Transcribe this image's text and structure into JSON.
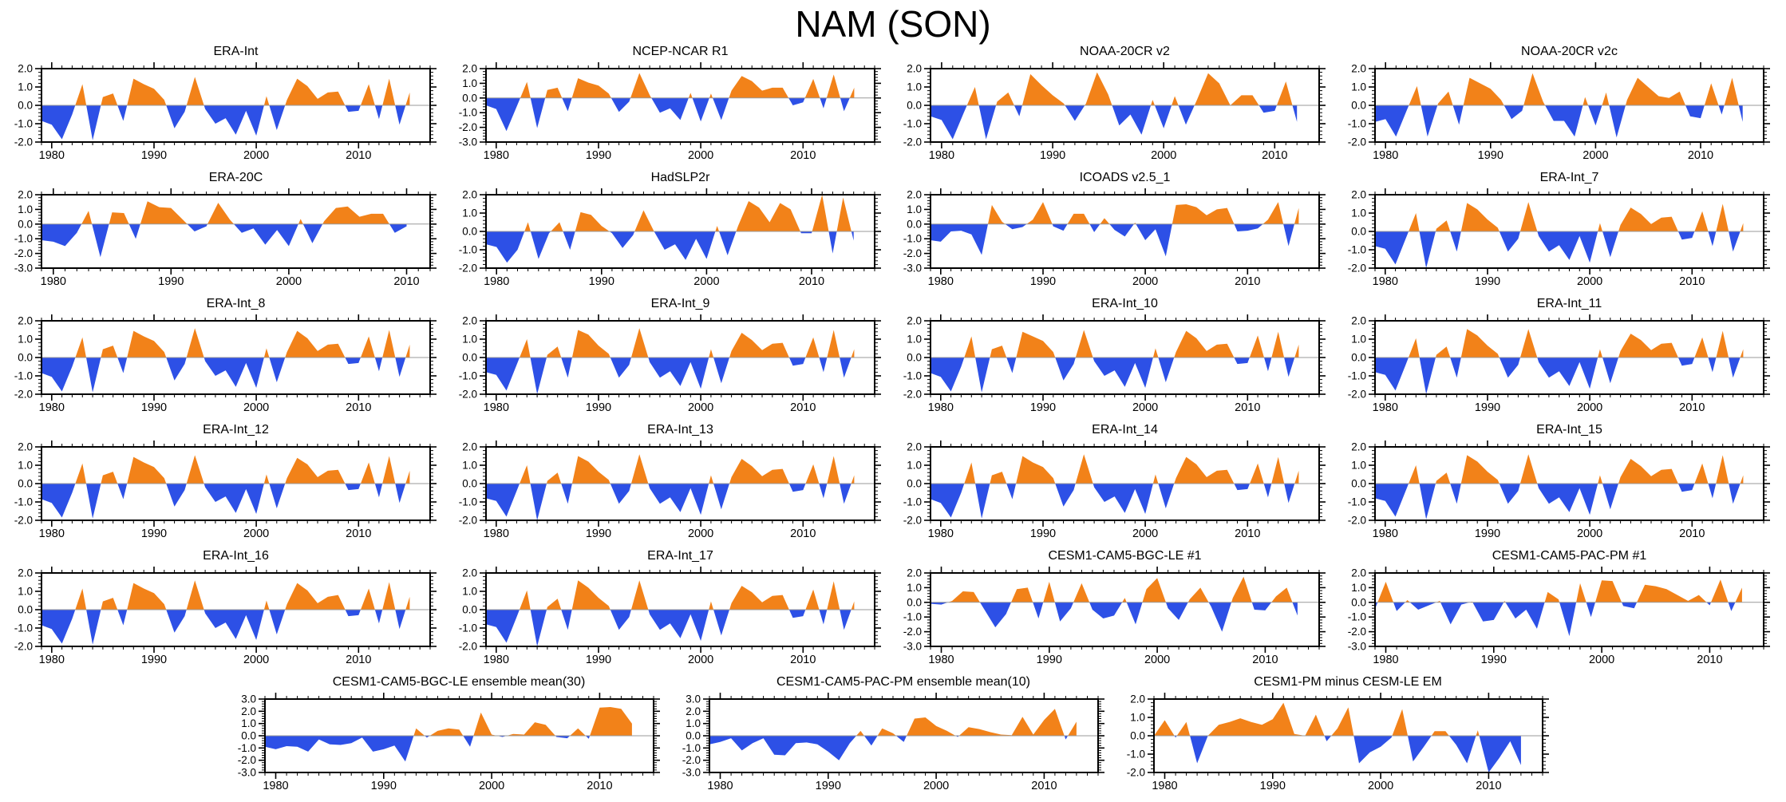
{
  "page_title": "NAM (SON)",
  "colors": {
    "positive": "#F28219",
    "negative": "#2D50E6",
    "axis": "#000000",
    "zero_line": "#999999"
  },
  "layout": {
    "rows": [
      {
        "panels": [
          0,
          1,
          2,
          3
        ],
        "centered": false
      },
      {
        "panels": [
          4,
          5,
          6,
          7
        ],
        "centered": false
      },
      {
        "panels": [
          8,
          9,
          10,
          11
        ],
        "centered": false
      },
      {
        "panels": [
          12,
          13,
          14,
          15
        ],
        "centered": false
      },
      {
        "panels": [
          16,
          17,
          18,
          19
        ],
        "centered": false
      },
      {
        "panels": [
          20,
          21,
          22
        ],
        "centered": true
      }
    ]
  },
  "chart_data": [
    {
      "type": "area",
      "title": "ERA-Int",
      "x_start": 1979,
      "x_axis_end": 2017,
      "xtick_labels": [
        1980,
        1990,
        2000,
        2010
      ],
      "ylim": [
        -2,
        2
      ],
      "ytick_step": 1,
      "values": [
        -0.85,
        -1.05,
        -1.85,
        -0.5,
        1.15,
        -1.9,
        0.45,
        0.65,
        -0.85,
        1.45,
        1.15,
        0.9,
        0.3,
        -1.25,
        -0.35,
        1.55,
        -0.2,
        -1.0,
        -0.7,
        -1.6,
        -0.3,
        -1.65,
        0.5,
        -1.35,
        0.3,
        1.45,
        1.05,
        0.35,
        0.7,
        0.75,
        -0.35,
        -0.3,
        1.15,
        -0.75,
        1.45,
        -1.05,
        0.7
      ]
    },
    {
      "type": "area",
      "title": "NCEP-NCAR R1",
      "x_start": 1979,
      "x_axis_end": 2017,
      "xtick_labels": [
        1980,
        1990,
        2000,
        2010
      ],
      "ylim": [
        -3,
        2
      ],
      "ytick_step": 1,
      "values": [
        -0.5,
        -0.75,
        -2.25,
        -0.6,
        1.1,
        -2.05,
        0.55,
        0.7,
        -0.9,
        1.35,
        1.05,
        0.85,
        0.3,
        -0.95,
        -0.25,
        1.7,
        0.2,
        -1.0,
        -0.7,
        -1.5,
        0.35,
        -1.6,
        0.3,
        -1.5,
        0.5,
        1.5,
        1.15,
        0.5,
        0.7,
        0.7,
        -0.5,
        -0.3,
        1.3,
        -0.7,
        1.6,
        -0.9,
        0.7
      ]
    },
    {
      "type": "area",
      "title": "NOAA-20CR v2",
      "x_start": 1979,
      "x_axis_end": 2014,
      "xtick_labels": [
        1980,
        1990,
        2000,
        2010
      ],
      "ylim": [
        -2,
        2
      ],
      "ytick_step": 1,
      "values": [
        -0.6,
        -0.8,
        -1.85,
        -0.4,
        1.0,
        -1.85,
        0.2,
        0.7,
        -0.6,
        1.7,
        1.1,
        0.55,
        0.1,
        -0.85,
        0.1,
        1.8,
        0.6,
        -1.1,
        -0.5,
        -1.6,
        0.3,
        -1.25,
        0.5,
        -1.05,
        0.3,
        1.75,
        1.2,
        0.0,
        0.55,
        0.55,
        -0.4,
        -0.3,
        1.3,
        -0.9
      ]
    },
    {
      "type": "area",
      "title": "NOAA-20CR v2c",
      "x_start": 1979,
      "x_axis_end": 2016,
      "xtick_labels": [
        1980,
        1990,
        2000,
        2010
      ],
      "ylim": [
        -2,
        2
      ],
      "ytick_step": 1,
      "values": [
        -0.9,
        -0.75,
        -1.7,
        -0.3,
        1.05,
        -1.7,
        0.1,
        0.75,
        -1.05,
        1.5,
        1.2,
        0.9,
        0.3,
        -0.75,
        -0.3,
        1.75,
        0.2,
        -0.85,
        -0.85,
        -1.7,
        0.45,
        -1.1,
        0.7,
        -1.75,
        0.3,
        1.5,
        1.0,
        0.5,
        0.4,
        0.75,
        -0.6,
        -0.7,
        1.2,
        -0.5,
        1.5,
        -0.9
      ]
    },
    {
      "type": "area",
      "title": "ERA-20C",
      "x_start": 1979,
      "x_axis_end": 2012,
      "xtick_labels": [
        1980,
        1990,
        2000,
        2010
      ],
      "ylim": [
        -3,
        2
      ],
      "ytick_step": 1,
      "values": [
        -1.1,
        -1.2,
        -1.5,
        -0.6,
        0.9,
        -2.25,
        0.8,
        0.75,
        -1.0,
        1.55,
        1.15,
        1.1,
        0.3,
        -0.5,
        -0.15,
        1.45,
        0.3,
        -0.6,
        -0.3,
        -1.4,
        -0.4,
        -1.5,
        0.35,
        -1.3,
        0.2,
        1.1,
        1.2,
        0.5,
        0.7,
        0.7,
        -0.6,
        -0.15
      ]
    },
    {
      "type": "area",
      "title": "HadSLP2r",
      "x_start": 1979,
      "x_axis_end": 2016,
      "xtick_labels": [
        1980,
        1990,
        2000,
        2010
      ],
      "ylim": [
        -2,
        2
      ],
      "ytick_step": 1,
      "values": [
        -0.7,
        -0.85,
        -1.7,
        -1.0,
        0.5,
        -1.5,
        -0.1,
        0.5,
        -1.0,
        1.05,
        0.9,
        0.3,
        -0.1,
        -0.9,
        -0.2,
        1.15,
        0.0,
        -1.0,
        -0.7,
        -1.55,
        -0.4,
        -1.5,
        0.3,
        -1.3,
        0.3,
        1.65,
        1.3,
        0.5,
        1.55,
        1.2,
        -0.1,
        -0.1,
        2.0,
        -1.2,
        1.85,
        -0.5
      ]
    },
    {
      "type": "area",
      "title": "ICOADS v2.5_1",
      "x_start": 1979,
      "x_axis_end": 2017,
      "xtick_labels": [
        1980,
        1990,
        2000,
        2010
      ],
      "ylim": [
        -3,
        2
      ],
      "ytick_step": 1,
      "values": [
        -1.1,
        -1.2,
        -0.5,
        -0.45,
        -0.7,
        -2.1,
        1.3,
        0.15,
        -0.35,
        -0.2,
        0.3,
        1.5,
        -0.15,
        -0.45,
        0.7,
        0.7,
        -0.55,
        0.4,
        -0.4,
        -0.85,
        0.1,
        -1.1,
        -0.35,
        -2.2,
        1.3,
        1.35,
        1.15,
        0.6,
        1.0,
        1.1,
        -0.5,
        -0.45,
        -0.3,
        0.3,
        1.5,
        -1.5,
        1.1
      ]
    },
    {
      "type": "area",
      "title": "ERA-Int_7",
      "x_start": 1979,
      "x_axis_end": 2017,
      "xtick_labels": [
        1980,
        1990,
        2000,
        2010
      ],
      "ylim": [
        -2,
        2
      ],
      "ytick_step": 1,
      "values": [
        -0.8,
        -0.95,
        -1.8,
        -0.4,
        1.0,
        -2.0,
        0.15,
        0.6,
        -1.1,
        1.55,
        1.2,
        0.65,
        0.2,
        -1.1,
        -0.4,
        1.6,
        -0.25,
        -1.1,
        -0.75,
        -1.55,
        -0.25,
        -1.7,
        0.45,
        -1.4,
        0.35,
        1.3,
        0.95,
        0.4,
        0.75,
        0.8,
        -0.45,
        -0.35,
        1.1,
        -0.8,
        1.5,
        -1.1,
        0.45
      ]
    },
    {
      "type": "area",
      "title": "ERA-Int_8",
      "x_start": 1979,
      "x_axis_end": 2017,
      "xtick_labels": [
        1980,
        1990,
        2000,
        2010
      ],
      "ylim": [
        -2,
        2
      ],
      "ytick_step": 1,
      "values": [
        -0.85,
        -1.05,
        -1.85,
        -0.5,
        1.1,
        -1.9,
        0.45,
        0.65,
        -0.85,
        1.45,
        1.15,
        0.9,
        0.3,
        -1.25,
        -0.35,
        1.6,
        -0.2,
        -1.0,
        -0.7,
        -1.6,
        -0.3,
        -1.65,
        0.5,
        -1.35,
        0.3,
        1.45,
        1.05,
        0.35,
        0.7,
        0.75,
        -0.35,
        -0.3,
        1.15,
        -0.75,
        1.5,
        -1.05,
        0.7
      ]
    },
    {
      "type": "area",
      "title": "ERA-Int_9",
      "x_start": 1979,
      "x_axis_end": 2017,
      "xtick_labels": [
        1980,
        1990,
        2000,
        2010
      ],
      "ylim": [
        -2,
        2
      ],
      "ytick_step": 1,
      "values": [
        -0.8,
        -0.95,
        -1.8,
        -0.4,
        1.0,
        -2.0,
        0.15,
        0.6,
        -1.1,
        1.5,
        1.25,
        0.65,
        0.2,
        -1.1,
        -0.4,
        1.6,
        -0.25,
        -1.1,
        -0.75,
        -1.55,
        -0.25,
        -1.7,
        0.45,
        -1.4,
        0.35,
        1.35,
        0.95,
        0.4,
        0.75,
        0.8,
        -0.45,
        -0.35,
        1.1,
        -0.8,
        1.5,
        -1.1,
        0.45
      ]
    },
    {
      "type": "area",
      "title": "ERA-Int_10",
      "x_start": 1979,
      "x_axis_end": 2017,
      "xtick_labels": [
        1980,
        1990,
        2000,
        2010
      ],
      "ylim": [
        -2,
        2
      ],
      "ytick_step": 1,
      "values": [
        -0.85,
        -1.05,
        -1.85,
        -0.5,
        1.15,
        -1.9,
        0.45,
        0.65,
        -0.85,
        1.4,
        1.15,
        0.9,
        0.3,
        -1.25,
        -0.35,
        1.5,
        -0.2,
        -1.0,
        -0.7,
        -1.6,
        -0.3,
        -1.65,
        0.5,
        -1.35,
        0.3,
        1.45,
        1.05,
        0.35,
        0.7,
        0.75,
        -0.35,
        -0.3,
        1.2,
        -0.75,
        1.4,
        -1.05,
        0.7
      ]
    },
    {
      "type": "area",
      "title": "ERA-Int_11",
      "x_start": 1979,
      "x_axis_end": 2017,
      "xtick_labels": [
        1980,
        1990,
        2000,
        2010
      ],
      "ylim": [
        -2,
        2
      ],
      "ytick_step": 1,
      "values": [
        -0.8,
        -0.95,
        -1.8,
        -0.4,
        1.05,
        -2.0,
        0.15,
        0.6,
        -1.1,
        1.55,
        1.2,
        0.65,
        0.2,
        -1.1,
        -0.4,
        1.55,
        -0.25,
        -1.1,
        -0.75,
        -1.55,
        -0.25,
        -1.7,
        0.45,
        -1.4,
        0.35,
        1.3,
        0.95,
        0.4,
        0.75,
        0.8,
        -0.45,
        -0.35,
        1.1,
        -0.8,
        1.45,
        -1.1,
        0.45
      ]
    },
    {
      "type": "area",
      "title": "ERA-Int_12",
      "x_start": 1979,
      "x_axis_end": 2017,
      "xtick_labels": [
        1980,
        1990,
        2000,
        2010
      ],
      "ylim": [
        -2,
        2
      ],
      "ytick_step": 1,
      "values": [
        -0.85,
        -1.05,
        -1.85,
        -0.5,
        1.1,
        -1.9,
        0.45,
        0.65,
        -0.85,
        1.45,
        1.15,
        0.9,
        0.3,
        -1.25,
        -0.35,
        1.55,
        -0.2,
        -1.0,
        -0.7,
        -1.6,
        -0.3,
        -1.65,
        0.5,
        -1.35,
        0.3,
        1.4,
        1.05,
        0.35,
        0.7,
        0.75,
        -0.35,
        -0.3,
        1.15,
        -0.75,
        1.5,
        -1.05,
        0.7
      ]
    },
    {
      "type": "area",
      "title": "ERA-Int_13",
      "x_start": 1979,
      "x_axis_end": 2017,
      "xtick_labels": [
        1980,
        1990,
        2000,
        2010
      ],
      "ylim": [
        -2,
        2
      ],
      "ytick_step": 1,
      "values": [
        -0.8,
        -0.95,
        -1.8,
        -0.4,
        1.0,
        -2.0,
        0.15,
        0.6,
        -1.1,
        1.5,
        1.2,
        0.65,
        0.2,
        -1.1,
        -0.4,
        1.6,
        -0.25,
        -1.1,
        -0.75,
        -1.55,
        -0.25,
        -1.7,
        0.45,
        -1.4,
        0.35,
        1.35,
        0.95,
        0.4,
        0.75,
        0.8,
        -0.45,
        -0.35,
        1.05,
        -0.8,
        1.5,
        -1.1,
        0.45
      ]
    },
    {
      "type": "area",
      "title": "ERA-Int_14",
      "x_start": 1979,
      "x_axis_end": 2017,
      "xtick_labels": [
        1980,
        1990,
        2000,
        2010
      ],
      "ylim": [
        -2,
        2
      ],
      "ytick_step": 1,
      "values": [
        -0.85,
        -1.05,
        -1.85,
        -0.5,
        1.15,
        -1.9,
        0.45,
        0.65,
        -0.85,
        1.5,
        1.15,
        0.9,
        0.3,
        -1.25,
        -0.35,
        1.6,
        -0.2,
        -1.0,
        -0.7,
        -1.6,
        -0.3,
        -1.65,
        0.5,
        -1.35,
        0.3,
        1.45,
        1.05,
        0.35,
        0.7,
        0.75,
        -0.35,
        -0.3,
        1.1,
        -0.75,
        1.45,
        -1.05,
        0.7
      ]
    },
    {
      "type": "area",
      "title": "ERA-Int_15",
      "x_start": 1979,
      "x_axis_end": 2017,
      "xtick_labels": [
        1980,
        1990,
        2000,
        2010
      ],
      "ylim": [
        -2,
        2
      ],
      "ytick_step": 1,
      "values": [
        -0.8,
        -0.95,
        -1.8,
        -0.4,
        1.0,
        -1.95,
        0.15,
        0.6,
        -1.1,
        1.55,
        1.2,
        0.65,
        0.2,
        -1.1,
        -0.4,
        1.6,
        -0.25,
        -1.1,
        -0.75,
        -1.55,
        -0.25,
        -1.7,
        0.45,
        -1.4,
        0.35,
        1.35,
        0.95,
        0.4,
        0.75,
        0.8,
        -0.45,
        -0.35,
        1.1,
        -0.8,
        1.55,
        -1.1,
        0.45
      ]
    },
    {
      "type": "area",
      "title": "ERA-Int_16",
      "x_start": 1979,
      "x_axis_end": 2017,
      "xtick_labels": [
        1980,
        1990,
        2000,
        2010
      ],
      "ylim": [
        -2,
        2
      ],
      "ytick_step": 1,
      "values": [
        -0.85,
        -1.05,
        -1.85,
        -0.5,
        1.15,
        -1.9,
        0.45,
        0.65,
        -0.85,
        1.45,
        1.15,
        0.9,
        0.3,
        -1.25,
        -0.35,
        1.6,
        -0.2,
        -1.0,
        -0.7,
        -1.6,
        -0.3,
        -1.65,
        0.5,
        -1.35,
        0.3,
        1.45,
        1.05,
        0.35,
        0.7,
        0.8,
        -0.35,
        -0.3,
        1.15,
        -0.75,
        1.5,
        -1.05,
        0.7
      ]
    },
    {
      "type": "area",
      "title": "ERA-Int_17",
      "x_start": 1979,
      "x_axis_end": 2017,
      "xtick_labels": [
        1980,
        1990,
        2000,
        2010
      ],
      "ylim": [
        -2,
        2
      ],
      "ytick_step": 1,
      "values": [
        -0.8,
        -0.95,
        -1.8,
        -0.4,
        1.05,
        -2.0,
        0.15,
        0.6,
        -1.1,
        1.6,
        1.2,
        0.65,
        0.2,
        -1.1,
        -0.4,
        1.6,
        -0.25,
        -1.1,
        -0.75,
        -1.55,
        -0.25,
        -1.7,
        0.45,
        -1.4,
        0.35,
        1.3,
        0.95,
        0.4,
        0.75,
        0.8,
        -0.45,
        -0.35,
        1.1,
        -0.8,
        1.55,
        -1.1,
        0.45
      ]
    },
    {
      "type": "area",
      "title": "CESM1-CAM5-BGC-LE #1",
      "x_start": 1979,
      "x_axis_end": 2015,
      "xtick_labels": [
        1980,
        1990,
        2000,
        2010
      ],
      "ylim": [
        -3,
        2
      ],
      "ytick_step": 1,
      "values": [
        -0.1,
        -0.15,
        0.1,
        0.75,
        0.7,
        -0.5,
        -1.7,
        -0.8,
        0.9,
        1.0,
        -1.1,
        1.4,
        -1.3,
        -0.4,
        1.3,
        -0.5,
        -1.1,
        -0.9,
        0.3,
        -1.5,
        0.9,
        1.65,
        -0.4,
        -1.2,
        0.2,
        1.0,
        -0.3,
        -2.0,
        0.3,
        1.75,
        -0.5,
        -0.55,
        0.4,
        1.0,
        -0.9
      ]
    },
    {
      "type": "area",
      "title": "CESM1-CAM5-PAC-PM #1",
      "x_start": 1979,
      "x_axis_end": 2015,
      "xtick_labels": [
        1980,
        1990,
        2000,
        2010
      ],
      "ylim": [
        -3,
        2
      ],
      "ytick_step": 1,
      "values": [
        -0.45,
        1.4,
        -0.6,
        0.15,
        -0.5,
        -0.2,
        0.1,
        -1.5,
        -0.15,
        0.05,
        -1.3,
        -1.2,
        0.1,
        -1.1,
        -0.5,
        -1.8,
        0.7,
        0.2,
        -2.3,
        1.3,
        -1.0,
        1.5,
        1.45,
        -0.25,
        -0.4,
        1.2,
        1.1,
        0.9,
        0.5,
        0.1,
        0.5,
        -0.2,
        1.55,
        -0.6,
        1.0
      ]
    },
    {
      "type": "area",
      "title": "CESM1-CAM5-BGC-LE ensemble mean(30)",
      "x_start": 1979,
      "x_axis_end": 2015,
      "xtick_labels": [
        1980,
        1990,
        2000,
        2010
      ],
      "ylim": [
        -3,
        3
      ],
      "ytick_step": 1,
      "values": [
        -0.9,
        -1.1,
        -0.85,
        -0.9,
        -1.3,
        -0.3,
        -0.7,
        -0.75,
        -0.6,
        -0.15,
        -1.3,
        -1.1,
        -0.8,
        -2.1,
        0.6,
        -0.15,
        0.4,
        0.6,
        0.5,
        -0.9,
        1.9,
        0.1,
        -0.1,
        0.15,
        0.1,
        1.1,
        0.9,
        -0.1,
        -0.2,
        0.6,
        -0.25,
        2.3,
        2.35,
        2.2,
        1.0
      ]
    },
    {
      "type": "area",
      "title": "CESM1-CAM5-PAC-PM ensemble mean(10)",
      "x_start": 1979,
      "x_axis_end": 2015,
      "xtick_labels": [
        1980,
        1990,
        2000,
        2010
      ],
      "ylim": [
        -3,
        3
      ],
      "ytick_step": 1,
      "values": [
        -0.7,
        -0.5,
        -0.2,
        -1.2,
        -0.6,
        -0.2,
        -1.55,
        -1.6,
        -0.6,
        -0.55,
        -0.7,
        -1.3,
        -2.0,
        -0.6,
        0.4,
        -0.8,
        0.6,
        0.2,
        -0.5,
        1.4,
        1.5,
        0.8,
        0.4,
        -0.1,
        0.7,
        0.55,
        0.3,
        0.1,
        0.05,
        1.55,
        0.1,
        1.3,
        2.2,
        -0.3,
        1.15
      ]
    },
    {
      "type": "area",
      "title": "CESM1-PM minus CESM-LE EM",
      "x_start": 1979,
      "x_axis_end": 2015,
      "xtick_labels": [
        1980,
        1990,
        2000,
        2010
      ],
      "ylim": [
        -2,
        2
      ],
      "ytick_step": 1,
      "values": [
        0.0,
        0.85,
        -0.1,
        0.75,
        -1.5,
        0.0,
        0.6,
        0.75,
        0.95,
        0.75,
        0.6,
        0.9,
        1.8,
        0.1,
        0.0,
        1.15,
        -0.3,
        0.4,
        1.55,
        -1.5,
        -0.9,
        -0.6,
        -0.1,
        1.45,
        -1.4,
        -0.6,
        0.25,
        0.25,
        -0.5,
        -1.5,
        0.3,
        -2.0,
        -1.2,
        -0.3,
        -1.6
      ]
    }
  ]
}
